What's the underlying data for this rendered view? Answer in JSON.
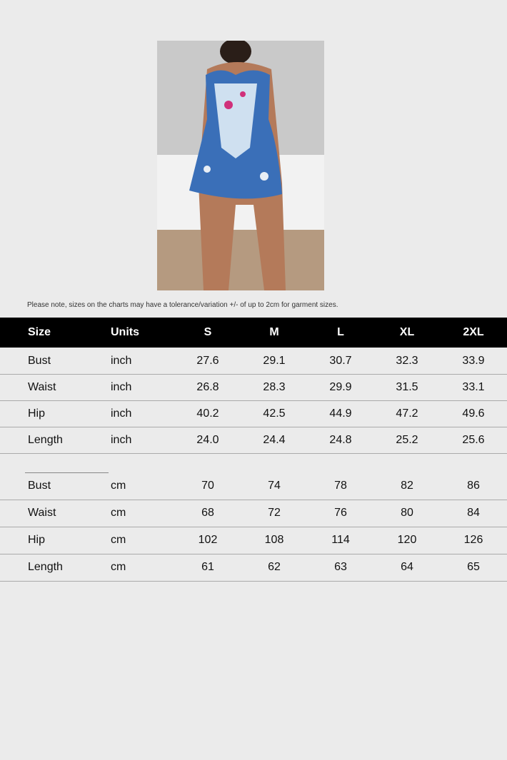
{
  "note": "Please note, sizes on the charts may have a tolerance/variation +/- of up to 2cm for garment sizes.",
  "header": [
    "Size",
    "Units",
    "S",
    "M",
    "L",
    "XL",
    "2XL"
  ],
  "inch_rows": [
    [
      "Bust",
      "inch",
      "27.6",
      "29.1",
      "30.7",
      "32.3",
      "33.9"
    ],
    [
      "Waist",
      "inch",
      "26.8",
      "28.3",
      "29.9",
      "31.5",
      "33.1"
    ],
    [
      "Hip",
      "inch",
      "40.2",
      "42.5",
      "44.9",
      "47.2",
      "49.6"
    ],
    [
      "Length",
      "inch",
      "24.0",
      "24.4",
      "24.8",
      "25.2",
      "25.6"
    ]
  ],
  "cm_rows": [
    [
      "Bust",
      "cm",
      "70",
      "74",
      "78",
      "82",
      "86"
    ],
    [
      "Waist",
      "cm",
      "68",
      "72",
      "76",
      "80",
      "84"
    ],
    [
      "Hip",
      "cm",
      "102",
      "108",
      "114",
      "120",
      "126"
    ],
    [
      "Length",
      "cm",
      "61",
      "62",
      "63",
      "64",
      "65"
    ]
  ],
  "colors": {
    "header_bg": "#000000",
    "page_bg": "#ebebeb",
    "garment": "#3a6fb8"
  }
}
